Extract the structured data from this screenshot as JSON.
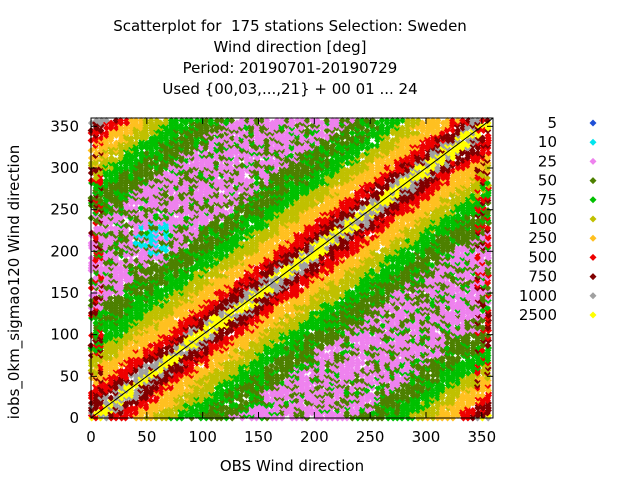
{
  "chart_data": {
    "type": "scatter",
    "title_lines": [
      "Scatterplot for  175 stations Selection: Sweden",
      "Wind direction [deg]",
      "Period: 20190701-20190729",
      "Used {00,03,...,21} + 00 01 ... 24"
    ],
    "xlabel": "OBS Wind direction",
    "ylabel": "iobs_0km_sigmao120 Wind direction",
    "xlim": [
      0,
      360
    ],
    "ylim": [
      0,
      360
    ],
    "xticks": [
      "0",
      "50",
      "100",
      "150",
      "200",
      "250",
      "300",
      "350"
    ],
    "yticks": [
      "0",
      "50",
      "100",
      "150",
      "200",
      "250",
      "300",
      "350"
    ],
    "grid": false,
    "legend_position": "right",
    "diagonal_line": true,
    "series": [
      {
        "name": "5",
        "color": "#1f4fd6"
      },
      {
        "name": "10",
        "color": "#00e5ee"
      },
      {
        "name": "25",
        "color": "#ee82ee"
      },
      {
        "name": "50",
        "color": "#4d8000"
      },
      {
        "name": "75",
        "color": "#00c000"
      },
      {
        "name": "100",
        "color": "#c0c000"
      },
      {
        "name": "250",
        "color": "#ffc020"
      },
      {
        "name": "500",
        "color": "#ee0000"
      },
      {
        "name": "750",
        "color": "#800000"
      },
      {
        "name": "1000",
        "color": "#a0a0a0"
      },
      {
        "name": "2500",
        "color": "#ffff00"
      }
    ]
  }
}
